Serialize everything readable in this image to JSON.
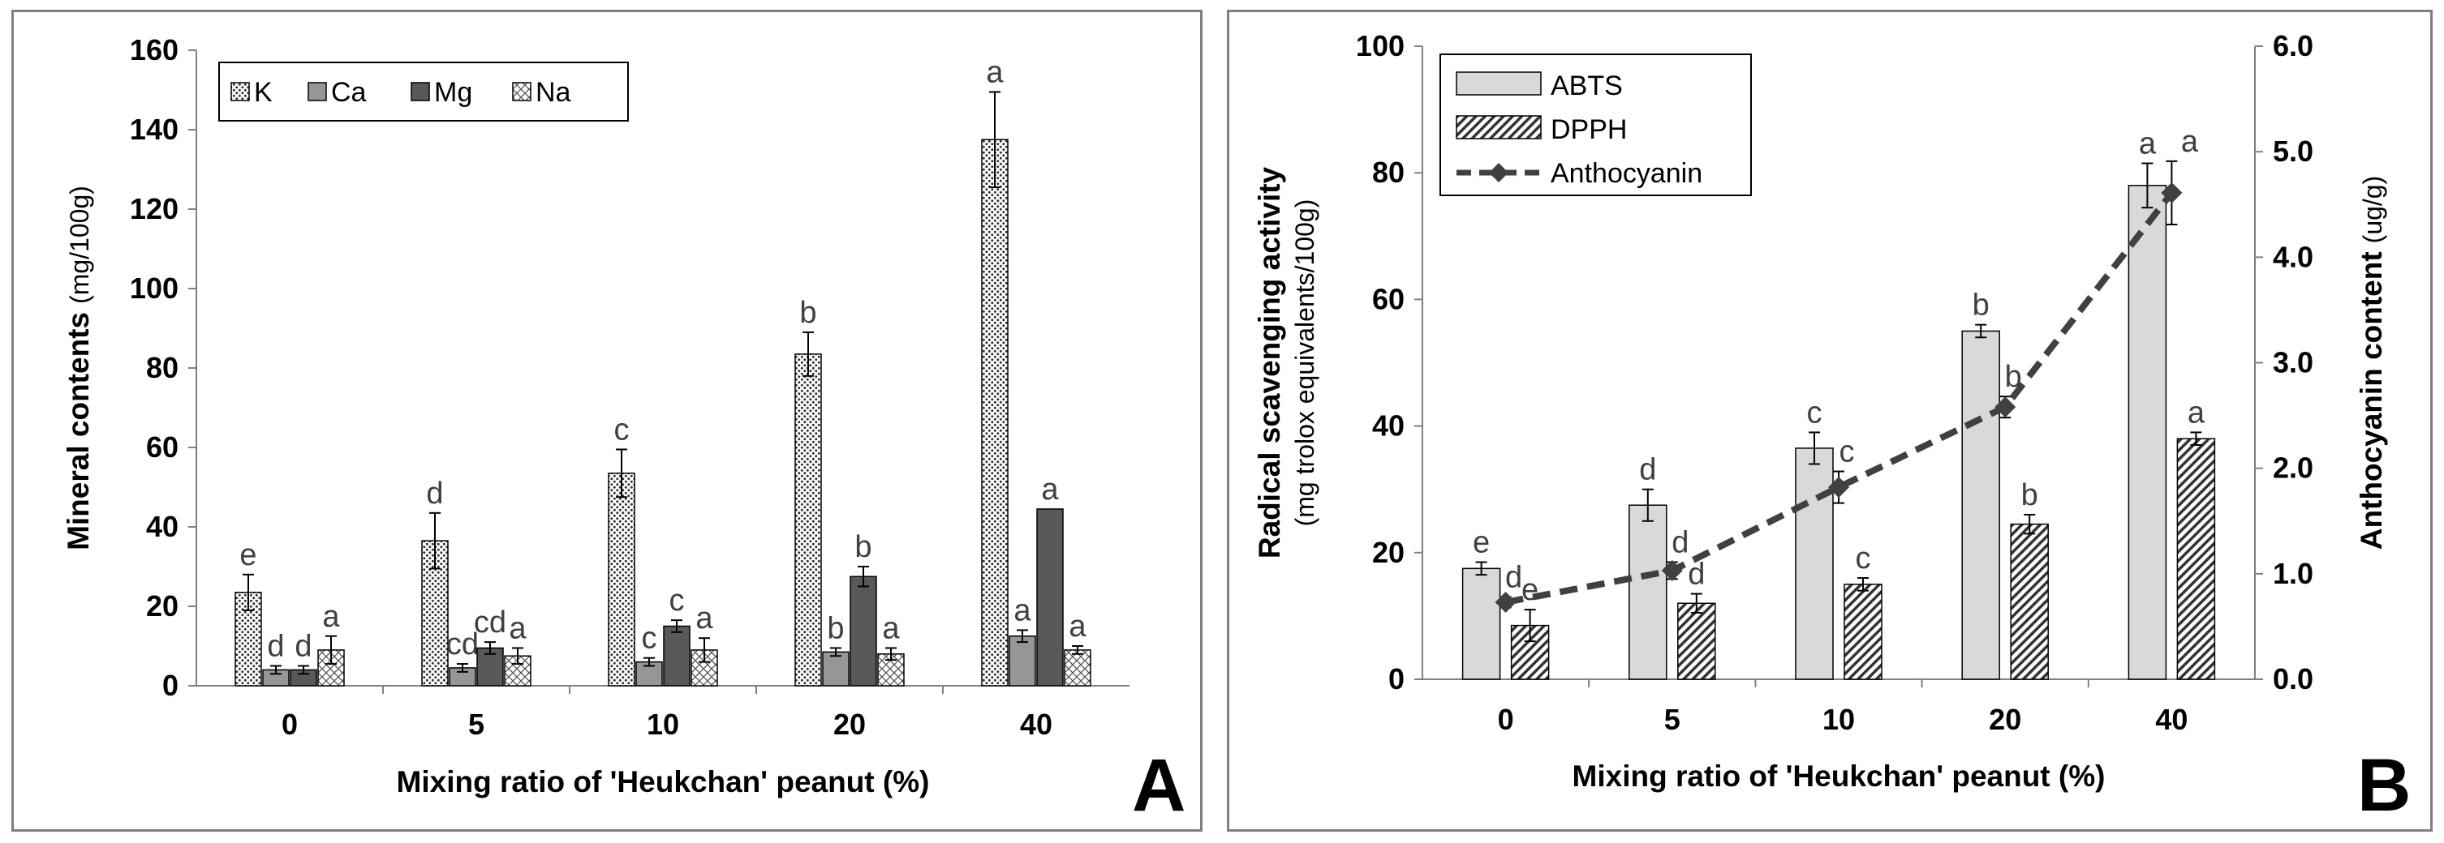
{
  "chart_data": [
    {
      "panel_label": "A",
      "type": "bar",
      "categories": [
        "0",
        "5",
        "10",
        "20",
        "40"
      ],
      "xlabel": "Mixing ratio of 'Heukchan' peanut (%)",
      "ylabel_main": "Mineral contents",
      "ylabel_unit": "(mg/100g)",
      "ylim": [
        0,
        160
      ],
      "yticks": [
        "0",
        "20",
        "40",
        "60",
        "80",
        "100",
        "120",
        "140",
        "160"
      ],
      "legend_position": "top-left",
      "grid": false,
      "series": [
        {
          "name": "K",
          "fill": "dots",
          "values": [
            23.5,
            36.5,
            53.5,
            83.5,
            137.5
          ],
          "errors": [
            4.5,
            7,
            6,
            5.5,
            12
          ],
          "sig": [
            "e",
            "d",
            "c",
            "b",
            "a"
          ]
        },
        {
          "name": "Ca",
          "fill": "#969696",
          "values": [
            4,
            4.5,
            6,
            8.5,
            12.5
          ],
          "errors": [
            1,
            1,
            1,
            1,
            1.5
          ],
          "sig": [
            "d",
            "cd",
            "c",
            "b",
            "a"
          ]
        },
        {
          "name": "Mg",
          "fill": "#595959",
          "values": [
            4,
            9.5,
            15,
            27.5,
            44.5
          ],
          "errors": [
            1,
            1.5,
            1.5,
            2.5,
            0
          ],
          "sig": [
            "d",
            "cd",
            "c",
            "b",
            "a"
          ]
        },
        {
          "name": "Na",
          "fill": "cross",
          "values": [
            9,
            7.5,
            9,
            8,
            9
          ],
          "errors": [
            3.5,
            2,
            3,
            1.5,
            1
          ],
          "sig": [
            "a",
            "a",
            "a",
            "a",
            "a"
          ]
        }
      ]
    },
    {
      "panel_label": "B",
      "type": "bar",
      "categories": [
        "0",
        "5",
        "10",
        "20",
        "40"
      ],
      "xlabel": "Mixing ratio of 'Heukchan' peanut (%)",
      "ylabel_main": "Radical scavenging activity",
      "ylabel_unit": "(mg trolox equivalents/100g)",
      "ylabel_right": "Anthocyanin content",
      "ylabel_right_unit": "(ug/g)",
      "ylim": [
        0,
        100
      ],
      "yticks": [
        "0",
        "20",
        "40",
        "60",
        "80",
        "100"
      ],
      "y2lim": [
        0,
        6
      ],
      "y2ticks": [
        "0.0",
        "1.0",
        "2.0",
        "3.0",
        "4.0",
        "5.0",
        "6.0"
      ],
      "legend_position": "top-left",
      "grid": false,
      "series": [
        {
          "name": "ABTS",
          "fill": "#d9d9d9",
          "values": [
            17.5,
            27.5,
            36.5,
            55,
            78
          ],
          "errors": [
            1,
            2.5,
            2.5,
            1,
            3.5
          ],
          "sig": [
            "e",
            "d",
            "c",
            "b",
            "a"
          ]
        },
        {
          "name": "DPPH",
          "fill": "diagonal",
          "values": [
            8.5,
            12,
            15,
            24.5,
            38
          ],
          "errors": [
            2.5,
            1.5,
            1,
            1.5,
            1
          ],
          "sig": [
            "e",
            "d",
            "c",
            "b",
            "a"
          ]
        }
      ],
      "line_series": {
        "name": "Anthocyanin",
        "axis": "right",
        "style": "dashed",
        "marker": "diamond",
        "color": "#404040",
        "values": [
          0.73,
          1.03,
          1.82,
          2.58,
          4.61
        ],
        "errors": [
          0.05,
          0.08,
          0.15,
          0.1,
          0.3
        ],
        "sig": [
          "d",
          "d",
          "c",
          "b",
          "a"
        ]
      }
    }
  ]
}
